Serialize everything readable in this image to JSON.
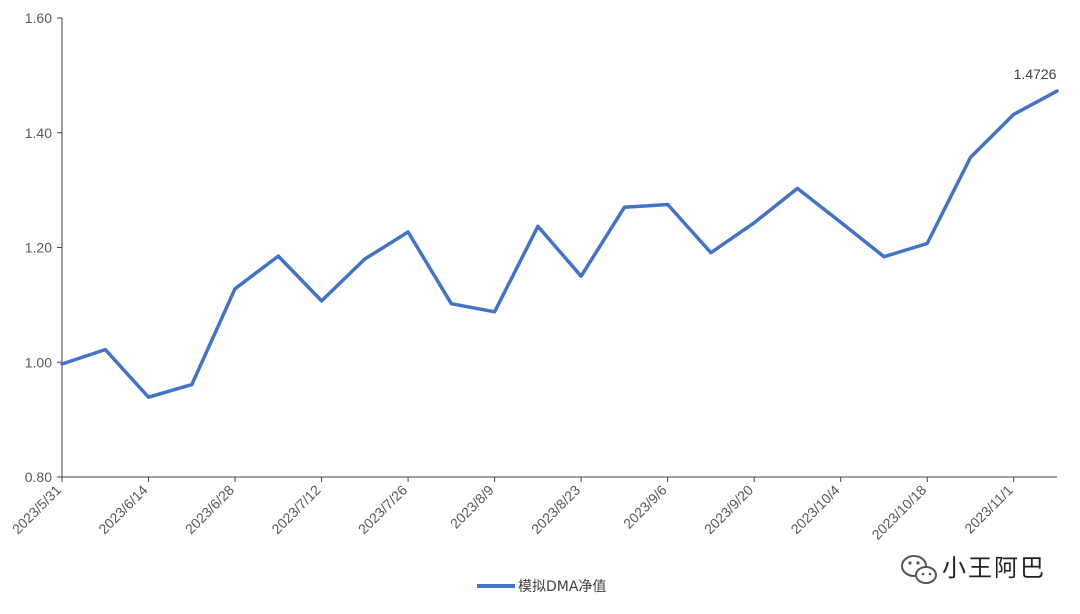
{
  "chart_data": {
    "type": "line",
    "title": "",
    "xlabel": "",
    "ylabel": "",
    "ylim": [
      0.8,
      1.6
    ],
    "y_ticks": [
      "0.80",
      "1.00",
      "1.20",
      "1.40",
      "1.60"
    ],
    "y_tick_values": [
      0.8,
      1.0,
      1.2,
      1.4,
      1.6
    ],
    "x_ticks": [
      "2023/5/31",
      "2023/6/14",
      "2023/6/28",
      "2023/7/12",
      "2023/7/26",
      "2023/8/9",
      "2023/8/23",
      "2023/9/6",
      "2023/9/20",
      "2023/10/4",
      "2023/10/18",
      "2023/11/1"
    ],
    "grid": false,
    "legend_position": "bottom",
    "color": "#4472C4",
    "series": [
      {
        "name": "模拟DMA净值",
        "x": [
          "2023/5/31",
          "2023/6/7",
          "2023/6/14",
          "2023/6/21",
          "2023/6/28",
          "2023/7/5",
          "2023/7/12",
          "2023/7/19",
          "2023/7/26",
          "2023/8/2",
          "2023/8/9",
          "2023/8/16",
          "2023/8/23",
          "2023/8/30",
          "2023/9/6",
          "2023/9/13",
          "2023/9/20",
          "2023/9/27",
          "2023/10/4",
          "2023/10/11",
          "2023/10/18",
          "2023/10/25",
          "2023/11/1",
          "2023/11/8"
        ],
        "values": [
          0.997,
          1.022,
          0.939,
          0.961,
          1.128,
          1.185,
          1.107,
          1.18,
          1.227,
          1.102,
          1.088,
          1.237,
          1.15,
          1.27,
          1.275,
          1.191,
          1.243,
          1.303,
          1.244,
          1.184,
          1.207,
          1.357,
          1.432,
          1.4726
        ]
      }
    ],
    "annotations": [
      {
        "series_index": 0,
        "point_index": 23,
        "text": "1.4726"
      }
    ]
  },
  "watermark": {
    "icon": "wechat-icon",
    "text": "小王阿巴"
  }
}
